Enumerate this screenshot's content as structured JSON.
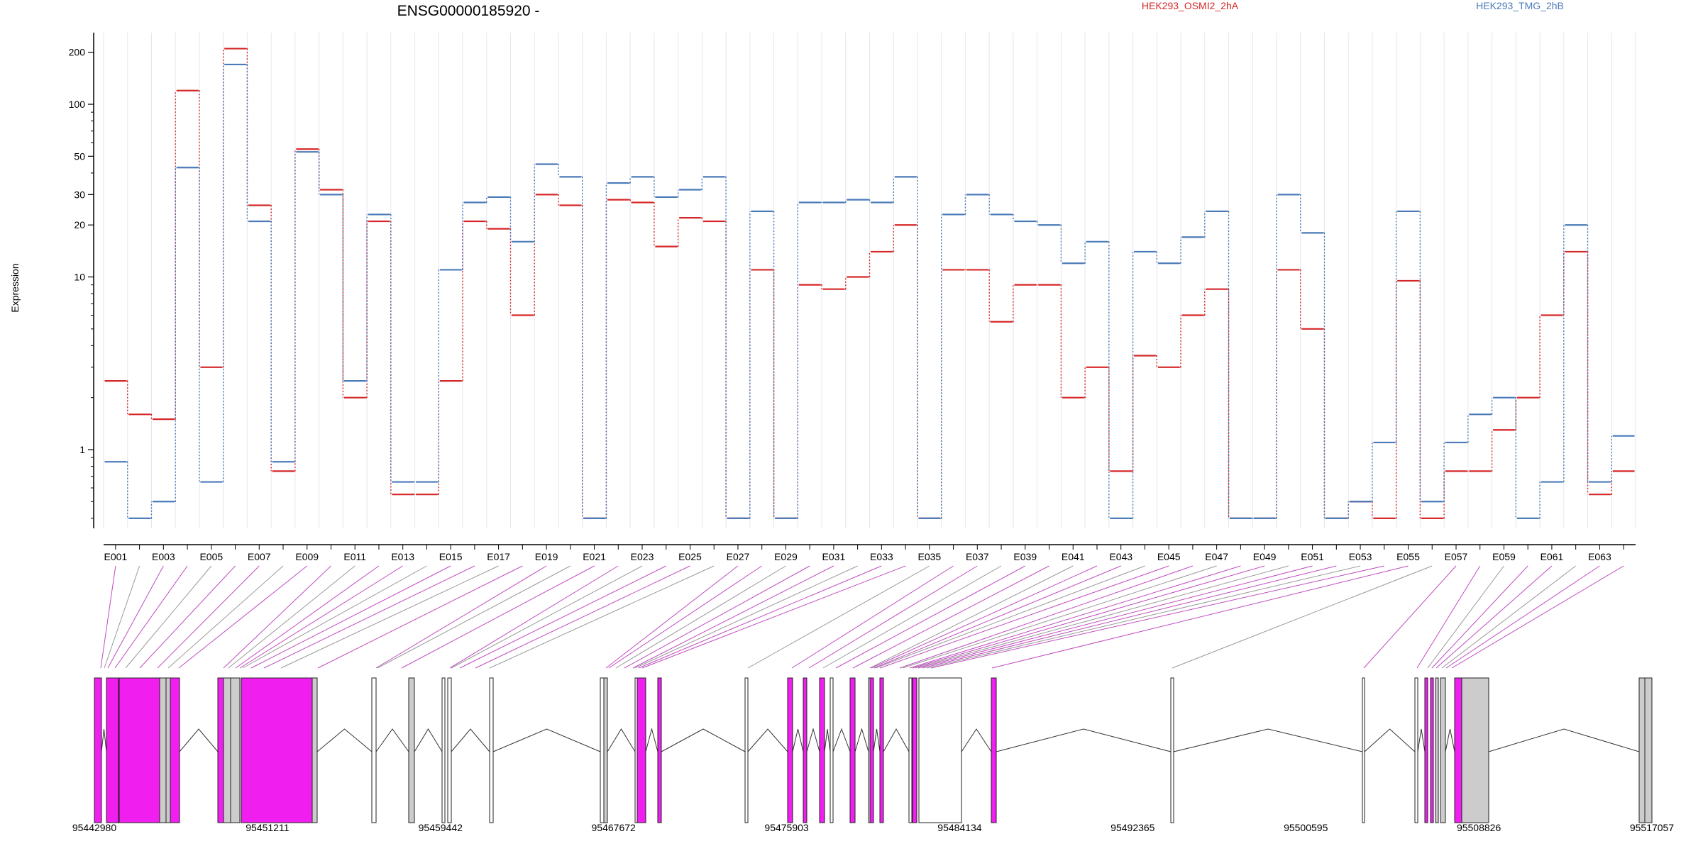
{
  "chart_data": {
    "type": "line",
    "title": "ENSG00000185920 -",
    "ylabel": "Expression",
    "y_scale": "log",
    "ylim": [
      0.35,
      260
    ],
    "y_ticks": [
      1,
      10,
      20,
      30,
      50,
      100,
      200
    ],
    "y_tick_labels": [
      "1",
      "10",
      "20",
      "30",
      "50",
      "100",
      "200"
    ],
    "exon_labels": [
      "E001",
      "E003",
      "E005",
      "E007",
      "E009",
      "E011",
      "E013",
      "E015",
      "E017",
      "E019",
      "E021",
      "E023",
      "E025",
      "E027",
      "E029",
      "E031",
      "E033",
      "E035",
      "E037",
      "E039",
      "E041",
      "E043",
      "E045",
      "E047",
      "E049",
      "E051",
      "E053",
      "E055",
      "E057",
      "E059",
      "E061",
      "E063"
    ],
    "genomic_ticks": [
      "95442980",
      "95451211",
      "95459442",
      "95467672",
      "95475903",
      "95484134",
      "95492365",
      "95500595",
      "95508826",
      "95517057"
    ],
    "series": [
      {
        "name": "HEK293_OSMI2_2hA",
        "color": "#d62728",
        "values": [
          2.5,
          1.6,
          1.5,
          120,
          3.0,
          210,
          26,
          0.75,
          55,
          32,
          2.0,
          21,
          0.55,
          0.55,
          2.5,
          21,
          19,
          6.0,
          30,
          26,
          0.4,
          28,
          27,
          15,
          22,
          21,
          0.4,
          11,
          0.4,
          9.0,
          8.5,
          10,
          14,
          20,
          0.4,
          11,
          11,
          5.5,
          9,
          9,
          2.0,
          3.0,
          0.75,
          3.5,
          3.0,
          6.0,
          8.5,
          0.4,
          0.4,
          11,
          5.0,
          0.4,
          0.5,
          0.4,
          9.5,
          0.4,
          0.75,
          0.75,
          1.3,
          2.0,
          6.0,
          14,
          0.55,
          0.75
        ]
      },
      {
        "name": "HEK293_TMG_2hB",
        "color": "#4a7ab8",
        "values": [
          0.85,
          0.4,
          0.5,
          43,
          0.65,
          170,
          21,
          0.85,
          53,
          30,
          2.5,
          23,
          0.65,
          0.65,
          11,
          27,
          29,
          16,
          45,
          38,
          0.4,
          35,
          38,
          29,
          32,
          38,
          0.4,
          24,
          0.4,
          27,
          27,
          28,
          27,
          38,
          0.4,
          23,
          30,
          23,
          21,
          20,
          12,
          16,
          0.4,
          14,
          12,
          17,
          24,
          0.4,
          0.4,
          30,
          18,
          0.4,
          0.5,
          1.1,
          24,
          0.5,
          1.1,
          1.6,
          2.0,
          0.4,
          0.65,
          20,
          0.65,
          1.2
        ]
      }
    ]
  }
}
